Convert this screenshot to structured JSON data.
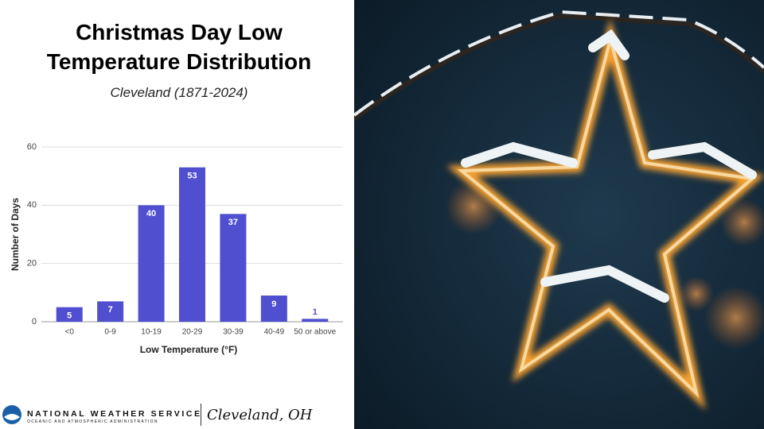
{
  "chart_data": {
    "type": "bar",
    "title": "Christmas Day Low Temperature Distribution",
    "subtitle": "Cleveland (1871-2024)",
    "x_label": "Low Temperature (°F)",
    "y_label": "Number of Days",
    "categories": [
      "<0",
      "0-9",
      "10-19",
      "20-29",
      "30-39",
      "40-49",
      "50 or above"
    ],
    "values": [
      5,
      7,
      40,
      53,
      37,
      9,
      1
    ],
    "color": "#4f4fd0",
    "ylim": [
      0,
      60
    ],
    "yticks": [
      0,
      20,
      40,
      60
    ],
    "grid": true
  },
  "footer": {
    "agency": "NATIONAL WEATHER SERVICE",
    "parent": "OCEANIC AND ATMOSPHERIC ADMINISTRATION",
    "office": "Cleveland, OH"
  }
}
